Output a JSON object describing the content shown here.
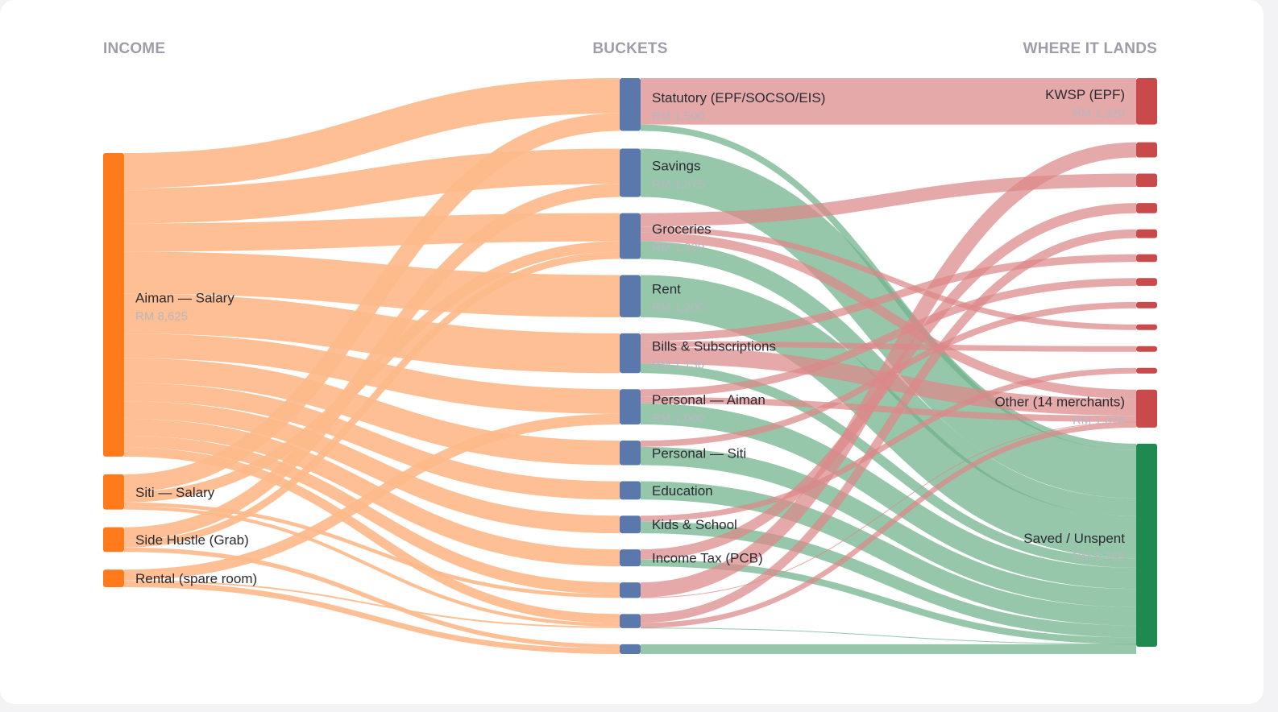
{
  "chart_data": {
    "type": "sankey",
    "columns": [
      "INCOME",
      "BUCKETS",
      "WHERE IT LANDS"
    ],
    "currency": "RM",
    "colors": {
      "income_node": "#ff7a1a",
      "income_link": "#fdba8a",
      "bucket_node": "#5b78ad",
      "destination_node": "#c94a4a",
      "saved_node": "#1f8a4f",
      "link_to_merchant": "#dc8888",
      "link_to_saved": "#6fb28a"
    },
    "income": [
      {
        "id": "aiman",
        "label": "Aiman — Salary",
        "value": 8625,
        "value_label": "RM 8,625"
      },
      {
        "id": "siti",
        "label": "Siti — Salary",
        "value": 1000
      },
      {
        "id": "grab",
        "label": "Side Hustle (Grab)",
        "value": 700
      },
      {
        "id": "rental",
        "label": "Rental (spare room)",
        "value": 500
      }
    ],
    "buckets": [
      {
        "id": "statutory",
        "label": "Statutory (EPF/SOCSO/EIS)",
        "value": 1500,
        "value_label": "RM 1,500"
      },
      {
        "id": "savings",
        "label": "Savings",
        "value": 1375,
        "value_label": "RM 1,375"
      },
      {
        "id": "groceries",
        "label": "Groceries",
        "value": 1300,
        "value_label": "RM 1,300"
      },
      {
        "id": "rent",
        "label": "Rent",
        "value": 1200,
        "value_label": "RM 1,200"
      },
      {
        "id": "bills",
        "label": "Bills & Subscriptions",
        "value": 1130,
        "value_label": "RM 1,130"
      },
      {
        "id": "pers_aiman",
        "label": "Personal — Aiman",
        "value": 1000,
        "value_label": "RM 1,000"
      },
      {
        "id": "pers_siti",
        "label": "Personal — Siti",
        "value": 700
      },
      {
        "id": "education",
        "label": "Education",
        "value": 520
      },
      {
        "id": "kids",
        "label": "Kids & School",
        "value": 500
      },
      {
        "id": "pcb",
        "label": "Income Tax (PCB)",
        "value": 480
      },
      {
        "id": "b11",
        "label": "",
        "value": 440
      },
      {
        "id": "b12",
        "label": "",
        "value": 400
      },
      {
        "id": "b13",
        "label": "",
        "value": 280
      }
    ],
    "destinations": [
      {
        "id": "kwsp",
        "label": "KWSP (EPF)",
        "value": 1320,
        "value_label": "RM 1,320"
      },
      {
        "id": "m1",
        "label": "",
        "value": 430
      },
      {
        "id": "m2",
        "label": "",
        "value": 380
      },
      {
        "id": "m3",
        "label": "",
        "value": 290
      },
      {
        "id": "m4",
        "label": "",
        "value": 250
      },
      {
        "id": "m5",
        "label": "",
        "value": 220
      },
      {
        "id": "m6",
        "label": "",
        "value": 220
      },
      {
        "id": "m7",
        "label": "",
        "value": 180
      },
      {
        "id": "m8",
        "label": "",
        "value": 160
      },
      {
        "id": "m9",
        "label": "",
        "value": 160
      },
      {
        "id": "m10",
        "label": "",
        "value": 160
      },
      {
        "id": "other",
        "label": "Other (14 merchants)",
        "value": 1078,
        "value_label": "RM 1,078"
      },
      {
        "id": "saved",
        "label": "Saved / Unspent",
        "value": 5769,
        "value_label": "RM 5,769"
      }
    ],
    "income_links": [
      {
        "source": "aiman",
        "target": "statutory",
        "value": 1000
      },
      {
        "source": "aiman",
        "target": "savings",
        "value": 1000
      },
      {
        "source": "aiman",
        "target": "groceries",
        "value": 800
      },
      {
        "source": "aiman",
        "target": "rent",
        "value": 1200
      },
      {
        "source": "aiman",
        "target": "bills",
        "value": 1130
      },
      {
        "source": "aiman",
        "target": "pers_aiman",
        "value": 700
      },
      {
        "source": "aiman",
        "target": "pers_siti",
        "value": 700
      },
      {
        "source": "aiman",
        "target": "education",
        "value": 520
      },
      {
        "source": "aiman",
        "target": "kids",
        "value": 500
      },
      {
        "source": "aiman",
        "target": "pcb",
        "value": 480
      },
      {
        "source": "aiman",
        "target": "b11",
        "value": 335
      },
      {
        "source": "aiman",
        "target": "b12",
        "value": 260
      },
      {
        "source": "siti",
        "target": "statutory",
        "value": 500
      },
      {
        "source": "siti",
        "target": "groceries",
        "value": 300
      },
      {
        "source": "siti",
        "target": "b11",
        "value": 105
      },
      {
        "source": "siti",
        "target": "b12",
        "value": 95
      },
      {
        "source": "grab",
        "target": "savings",
        "value": 375
      },
      {
        "source": "grab",
        "target": "groceries",
        "value": 200
      },
      {
        "source": "grab",
        "target": "b13",
        "value": 125
      },
      {
        "source": "rental",
        "target": "pers_aiman",
        "value": 300
      },
      {
        "source": "rental",
        "target": "b12",
        "value": 45
      },
      {
        "source": "rental",
        "target": "b13",
        "value": 155
      }
    ],
    "bucket_links": [
      {
        "source": "statutory",
        "target": "kwsp",
        "value": 1320
      },
      {
        "source": "statutory",
        "target": "saved",
        "value": 180
      },
      {
        "source": "savings",
        "target": "saved",
        "value": 1375
      },
      {
        "source": "groceries",
        "target": "m2",
        "value": 380
      },
      {
        "source": "groceries",
        "target": "m8",
        "value": 160
      },
      {
        "source": "groceries",
        "target": "other",
        "value": 260
      },
      {
        "source": "groceries",
        "target": "saved",
        "value": 500
      },
      {
        "source": "rent",
        "target": "saved",
        "value": 1200
      },
      {
        "source": "bills",
        "target": "m5",
        "value": 220
      },
      {
        "source": "bills",
        "target": "m9",
        "value": 160
      },
      {
        "source": "bills",
        "target": "other",
        "value": 480
      },
      {
        "source": "bills",
        "target": "saved",
        "value": 270
      },
      {
        "source": "pers_aiman",
        "target": "m6",
        "value": 220
      },
      {
        "source": "pers_aiman",
        "target": "other",
        "value": 180
      },
      {
        "source": "pers_aiman",
        "target": "saved",
        "value": 600
      },
      {
        "source": "pers_siti",
        "target": "m7",
        "value": 180
      },
      {
        "source": "pers_siti",
        "target": "saved",
        "value": 520
      },
      {
        "source": "education",
        "target": "saved",
        "value": 520
      },
      {
        "source": "kids",
        "target": "m10",
        "value": 160
      },
      {
        "source": "kids",
        "target": "saved",
        "value": 340
      },
      {
        "source": "pcb",
        "target": "m3",
        "value": 290
      },
      {
        "source": "pcb",
        "target": "saved",
        "value": 190
      },
      {
        "source": "b11",
        "target": "m1",
        "value": 430
      },
      {
        "source": "b11",
        "target": "other",
        "value": 10
      },
      {
        "source": "b12",
        "target": "m4",
        "value": 250
      },
      {
        "source": "b12",
        "target": "other",
        "value": 148
      },
      {
        "source": "b12",
        "target": "saved",
        "value": 2
      },
      {
        "source": "b13",
        "target": "saved",
        "value": 280
      }
    ]
  }
}
